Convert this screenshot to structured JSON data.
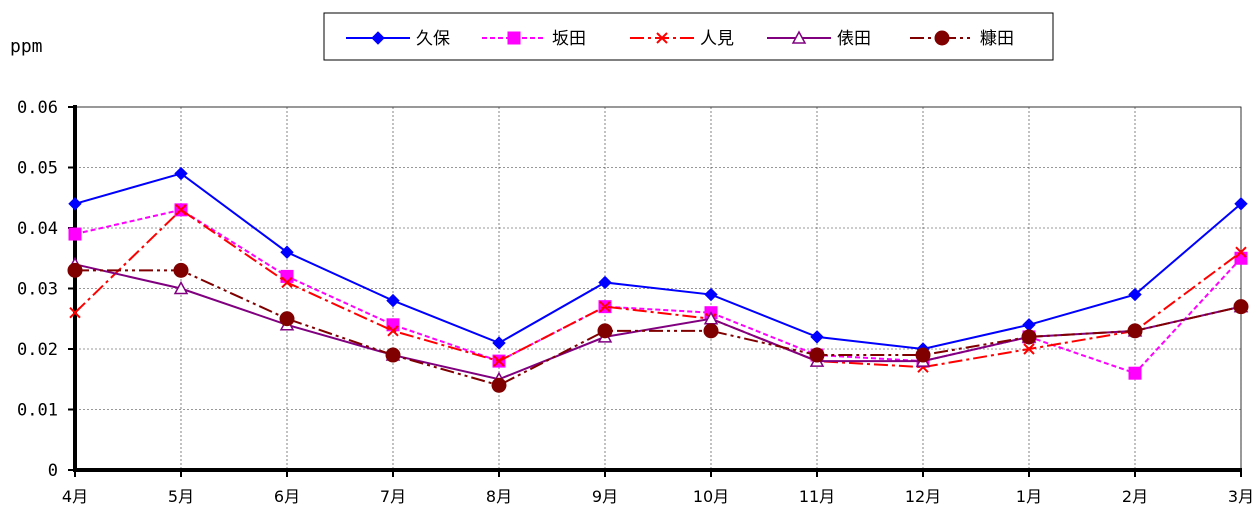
{
  "chart_data": {
    "type": "line",
    "title": "",
    "xlabel": "",
    "ylabel": "ppm",
    "categories": [
      "4月",
      "5月",
      "6月",
      "7月",
      "8月",
      "9月",
      "10月",
      "11月",
      "12月",
      "1月",
      "2月",
      "3月"
    ],
    "ylim": [
      0,
      0.06
    ],
    "yticks": [
      0,
      0.01,
      0.02,
      0.03,
      0.04,
      0.05,
      0.06
    ],
    "ytick_labels": [
      "0",
      "0.01",
      "0.02",
      "0.03",
      "0.04",
      "0.05",
      "0.06"
    ],
    "grid": true,
    "legend_position": "top-center",
    "series": [
      {
        "name": "久保",
        "color": "#0000ff",
        "marker": "diamond",
        "dash": "",
        "values": [
          0.044,
          0.049,
          0.036,
          0.028,
          0.021,
          0.031,
          0.029,
          0.022,
          0.02,
          0.024,
          0.029,
          0.044
        ]
      },
      {
        "name": "坂田",
        "color": "#ff00ff",
        "marker": "square",
        "dash": "5,3",
        "values": [
          0.039,
          0.043,
          0.032,
          0.024,
          0.018,
          0.027,
          0.026,
          0.019,
          0.018,
          0.022,
          0.016,
          0.035
        ]
      },
      {
        "name": "人見",
        "color": "#ff0000",
        "marker": "x",
        "dash": "14,4,3,4",
        "values": [
          0.026,
          0.043,
          0.031,
          0.023,
          0.018,
          0.027,
          0.025,
          0.018,
          0.017,
          0.02,
          0.023,
          0.036
        ]
      },
      {
        "name": "俵田",
        "color": "#800080",
        "marker": "triangle",
        "dash": "",
        "values": [
          0.034,
          0.03,
          0.024,
          0.019,
          0.015,
          0.022,
          0.025,
          0.018,
          0.018,
          0.022,
          0.023,
          0.027
        ]
      },
      {
        "name": "糠田",
        "color": "#800000",
        "marker": "circle",
        "dash": "14,4,3,4,3,4",
        "values": [
          0.033,
          0.033,
          0.025,
          0.019,
          0.014,
          0.023,
          0.023,
          0.019,
          0.019,
          0.022,
          0.023,
          0.027
        ]
      }
    ]
  }
}
